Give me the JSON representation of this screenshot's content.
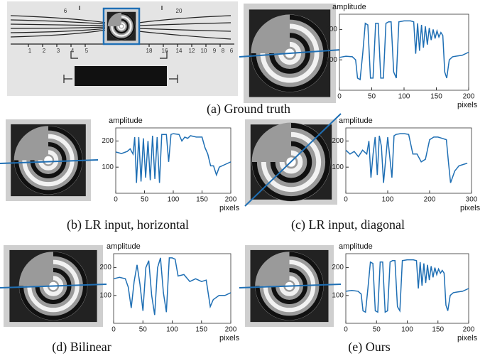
{
  "ruler_image": {
    "labels": [
      "6",
      "20",
      "1",
      "2",
      "3",
      "4",
      "5",
      "18",
      "16",
      "14",
      "12",
      "10",
      "9",
      "8",
      "6"
    ]
  },
  "chart_data": [
    {
      "type": "line",
      "caption": "(a) Ground truth",
      "ylabel": "amplitude",
      "xlabel": "pixels",
      "color": "#1f6fb4",
      "x": [
        0,
        10,
        20,
        25,
        28,
        32,
        36,
        40,
        44,
        48,
        52,
        56,
        60,
        64,
        68,
        72,
        76,
        80,
        84,
        88,
        92,
        100,
        110,
        115,
        118,
        121,
        124,
        127,
        130,
        133,
        136,
        139,
        142,
        145,
        148,
        151,
        154,
        157,
        160,
        163,
        166,
        170,
        175,
        180,
        190,
        200
      ],
      "values": [
        108,
        112,
        110,
        100,
        40,
        35,
        120,
        220,
        215,
        40,
        40,
        220,
        220,
        40,
        40,
        220,
        225,
        225,
        60,
        40,
        225,
        228,
        228,
        225,
        120,
        220,
        130,
        215,
        140,
        210,
        150,
        205,
        165,
        200,
        170,
        195,
        175,
        190,
        180,
        60,
        40,
        100,
        110,
        112,
        115,
        125
      ],
      "xlim": [
        0,
        200
      ],
      "ylim": [
        0,
        250
      ],
      "xticks": [
        0,
        50,
        100,
        150,
        200
      ],
      "yticks": [
        100,
        200
      ]
    },
    {
      "type": "line",
      "caption": "(b) LR input, horizontal",
      "ylabel": "amplitude",
      "xlabel": "pixels",
      "color": "#1f6fb4",
      "x": [
        0,
        10,
        20,
        25,
        30,
        33,
        36,
        40,
        44,
        48,
        52,
        56,
        60,
        64,
        68,
        72,
        76,
        80,
        84,
        88,
        92,
        96,
        100,
        110,
        115,
        120,
        125,
        130,
        140,
        150,
        155,
        160,
        165,
        170,
        175,
        180,
        190,
        200
      ],
      "values": [
        158,
        152,
        160,
        170,
        150,
        215,
        40,
        215,
        45,
        210,
        60,
        200,
        50,
        220,
        55,
        215,
        40,
        225,
        225,
        225,
        120,
        225,
        228,
        225,
        200,
        215,
        210,
        220,
        215,
        215,
        175,
        150,
        105,
        105,
        70,
        100,
        110,
        120
      ],
      "xlim": [
        0,
        200
      ],
      "ylim": [
        0,
        250
      ],
      "xticks": [
        0,
        50,
        100,
        150,
        200
      ],
      "yticks": [
        100,
        200
      ]
    },
    {
      "type": "line",
      "caption": "(c) LR input, diagonal",
      "ylabel": "amplitude",
      "xlabel": "pixels",
      "color": "#1f6fb4",
      "x": [
        0,
        10,
        20,
        30,
        40,
        50,
        55,
        60,
        65,
        70,
        75,
        80,
        85,
        90,
        100,
        110,
        115,
        120,
        130,
        140,
        150,
        160,
        170,
        180,
        190,
        200,
        210,
        220,
        230,
        240,
        245,
        250,
        260,
        270,
        280,
        290
      ],
      "values": [
        165,
        150,
        160,
        140,
        165,
        150,
        200,
        60,
        150,
        215,
        70,
        220,
        180,
        40,
        215,
        60,
        220,
        225,
        228,
        228,
        225,
        150,
        150,
        120,
        130,
        205,
        215,
        215,
        210,
        205,
        120,
        40,
        85,
        105,
        110,
        115
      ],
      "xlim": [
        0,
        300
      ],
      "ylim": [
        0,
        250
      ],
      "xticks": [
        0,
        100,
        200,
        300
      ],
      "yticks": [
        100,
        200
      ]
    },
    {
      "type": "line",
      "caption": "(d) Bilinear",
      "ylabel": "amplitude",
      "xlabel": "pixels",
      "color": "#1f6fb4",
      "x": [
        0,
        10,
        20,
        25,
        30,
        35,
        40,
        45,
        50,
        55,
        60,
        65,
        70,
        75,
        80,
        85,
        90,
        95,
        100,
        105,
        110,
        120,
        130,
        140,
        150,
        158,
        165,
        170,
        180,
        190,
        200
      ],
      "values": [
        160,
        165,
        160,
        130,
        55,
        150,
        210,
        140,
        45,
        200,
        225,
        100,
        30,
        200,
        235,
        110,
        40,
        235,
        235,
        230,
        170,
        175,
        150,
        160,
        150,
        155,
        60,
        85,
        100,
        100,
        110
      ],
      "xlim": [
        0,
        200
      ],
      "ylim": [
        0,
        250
      ],
      "xticks": [
        0,
        50,
        100,
        150,
        200
      ],
      "yticks": [
        100,
        200
      ]
    },
    {
      "type": "line",
      "caption": "(e) Ours",
      "ylabel": "amplitude",
      "xlabel": "pixels",
      "color": "#1f6fb4",
      "x": [
        0,
        10,
        20,
        25,
        28,
        32,
        36,
        40,
        44,
        48,
        52,
        56,
        60,
        64,
        68,
        72,
        76,
        80,
        84,
        88,
        92,
        100,
        110,
        115,
        118,
        121,
        124,
        127,
        130,
        133,
        136,
        139,
        142,
        145,
        148,
        151,
        154,
        157,
        160,
        163,
        166,
        170,
        175,
        180,
        190,
        200
      ],
      "values": [
        115,
        118,
        115,
        105,
        45,
        40,
        125,
        220,
        215,
        45,
        40,
        220,
        220,
        40,
        45,
        220,
        225,
        225,
        60,
        45,
        225,
        228,
        228,
        225,
        125,
        220,
        135,
        215,
        145,
        210,
        155,
        205,
        165,
        200,
        175,
        195,
        180,
        190,
        180,
        65,
        45,
        100,
        110,
        112,
        115,
        125
      ],
      "xlim": [
        0,
        200
      ],
      "ylim": [
        0,
        250
      ],
      "xticks": [
        0,
        50,
        100,
        150,
        200
      ],
      "yticks": [
        100,
        200
      ]
    }
  ]
}
